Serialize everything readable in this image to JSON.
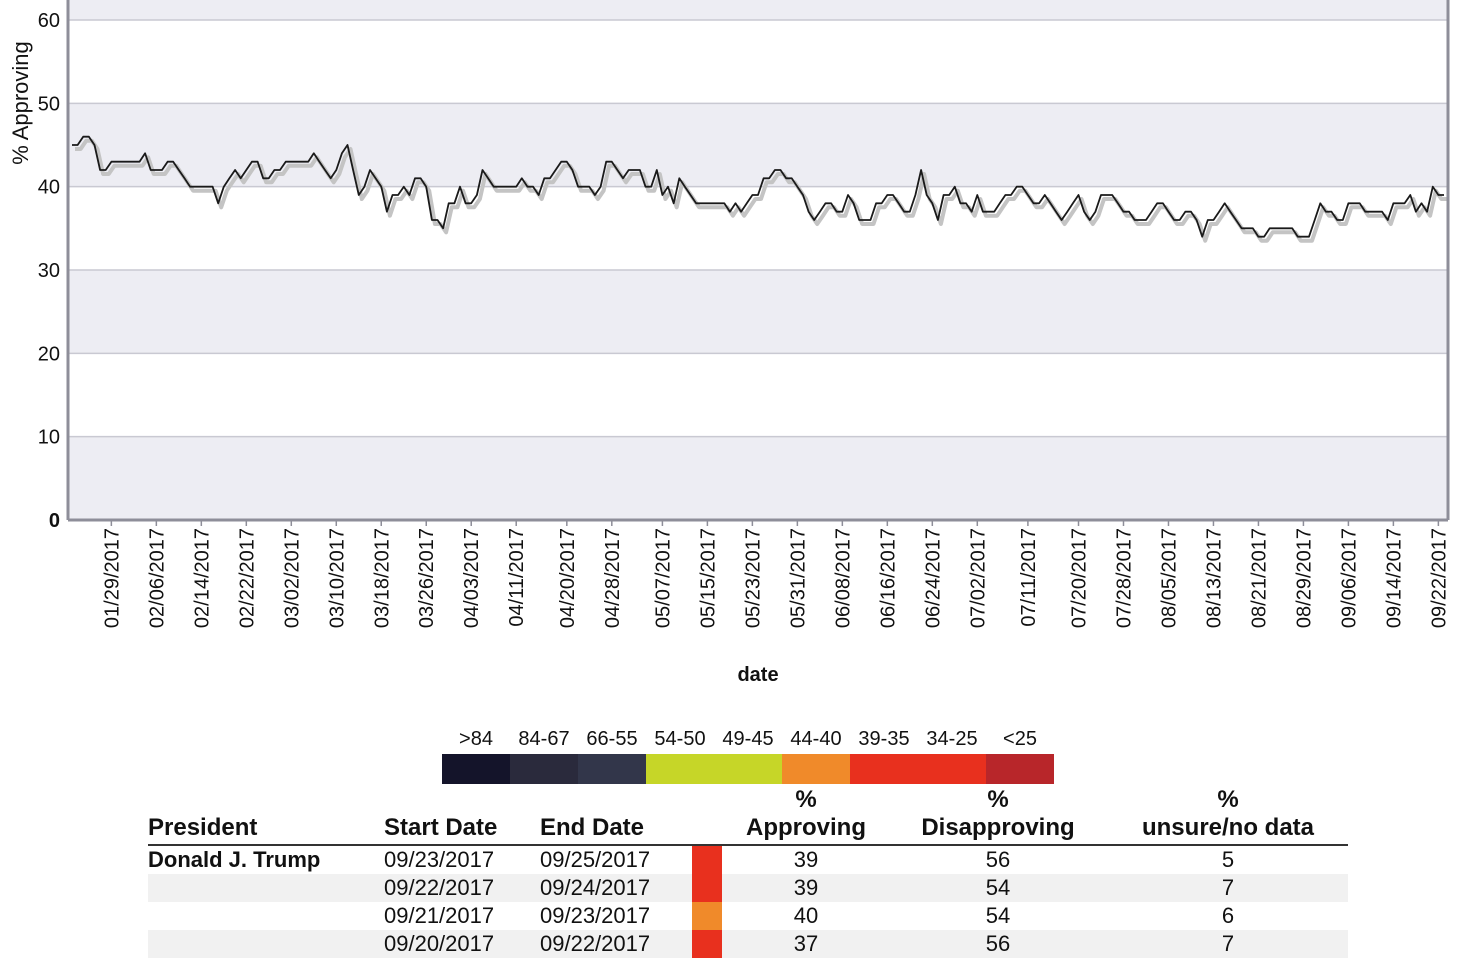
{
  "chart_data": {
    "type": "line",
    "ylabel": "% Approving",
    "xlabel": "date",
    "ylim": [
      0,
      60
    ],
    "yticks": [
      0,
      10,
      20,
      30,
      40,
      50,
      60
    ],
    "grid": true,
    "x_start": "01/22/2017",
    "x_end": "09/23/2017",
    "xtick_labels": [
      "01/29/2017",
      "02/06/2017",
      "02/14/2017",
      "02/22/2017",
      "03/02/2017",
      "03/10/2017",
      "03/18/2017",
      "03/26/2017",
      "04/03/2017",
      "04/11/2017",
      "04/20/2017",
      "04/28/2017",
      "05/07/2017",
      "05/15/2017",
      "05/23/2017",
      "05/31/2017",
      "06/08/2017",
      "06/16/2017",
      "06/24/2017",
      "07/02/2017",
      "07/11/2017",
      "07/20/2017",
      "07/28/2017",
      "08/05/2017",
      "08/13/2017",
      "08/21/2017",
      "08/29/2017",
      "09/06/2017",
      "09/14/2017",
      "09/22/2017"
    ],
    "series": [
      {
        "values": [
          45,
          45,
          46,
          46,
          45,
          42,
          42,
          43,
          43,
          43,
          43,
          43,
          43,
          44,
          42,
          42,
          42,
          43,
          43,
          42,
          41,
          40,
          40,
          40,
          40,
          40,
          38,
          40,
          41,
          42,
          41,
          42,
          43,
          43,
          41,
          41,
          42,
          42,
          43,
          43,
          43,
          43,
          43,
          44,
          43,
          42,
          41,
          42,
          44,
          45,
          42,
          39,
          40,
          42,
          41,
          40,
          37,
          39,
          39,
          40,
          39,
          41,
          41,
          40,
          36,
          36,
          35,
          38,
          38,
          40,
          38,
          38,
          39,
          42,
          41,
          40,
          40,
          40,
          40,
          40,
          41,
          40,
          40,
          39,
          41,
          41,
          42,
          43,
          43,
          42,
          40,
          40,
          40,
          39,
          40,
          43,
          43,
          42,
          41,
          42,
          42,
          42,
          40,
          40,
          42,
          39,
          40,
          38,
          41,
          40,
          39,
          38,
          38,
          38,
          38,
          38,
          38,
          37,
          38,
          37,
          38,
          39,
          39,
          41,
          41,
          42,
          42,
          41,
          41,
          40,
          39,
          37,
          36,
          37,
          38,
          38,
          37,
          37,
          39,
          38,
          36,
          36,
          36,
          38,
          38,
          39,
          39,
          38,
          37,
          37,
          39,
          42,
          39,
          38,
          36,
          39,
          39,
          40,
          38,
          38,
          37,
          39,
          37,
          37,
          37,
          38,
          39,
          39,
          40,
          40,
          39,
          38,
          38,
          39,
          38,
          37,
          36,
          37,
          38,
          39,
          37,
          36,
          37,
          39,
          39,
          39,
          38,
          37,
          37,
          36,
          36,
          36,
          37,
          38,
          38,
          37,
          36,
          36,
          37,
          37,
          36,
          34,
          36,
          36,
          37,
          38,
          37,
          36,
          35,
          35,
          35,
          34,
          34,
          35,
          35,
          35,
          35,
          35,
          34,
          34,
          34,
          36,
          38,
          37,
          37,
          36,
          36,
          38,
          38,
          38,
          37,
          37,
          37,
          37,
          36,
          38,
          38,
          38,
          39,
          37,
          38,
          37,
          40,
          39,
          39
        ]
      }
    ]
  },
  "legend": {
    "items": [
      {
        "label": ">84",
        "color": "#14142a"
      },
      {
        "label": "84-67",
        "color": "#2a2a3c"
      },
      {
        "label": "66-55",
        "color": "#32364a"
      },
      {
        "label": "54-50",
        "color": "#c6d628"
      },
      {
        "label": "49-45",
        "color": "#c6d628"
      },
      {
        "label": "44-40",
        "color": "#f08a2a"
      },
      {
        "label": "39-35",
        "color": "#e8301e"
      },
      {
        "label": "34-25",
        "color": "#e8301e"
      },
      {
        "label": "<25",
        "color": "#b8262a"
      }
    ]
  },
  "table": {
    "headers": {
      "president": "President",
      "start_date": "Start Date",
      "end_date": "End Date",
      "approving_line1": "%",
      "approving_line2": "Approving",
      "disapproving_line1": "%",
      "disapproving_line2": "Disapproving",
      "unsure_line1": "%",
      "unsure_line2": "unsure/no data"
    },
    "rows": [
      {
        "president": "Donald J. Trump",
        "start": "09/23/2017",
        "end": "09/25/2017",
        "approving": "39",
        "disapproving": "56",
        "unsure": "5",
        "rating_color": "#e8301e"
      },
      {
        "president": "",
        "start": "09/22/2017",
        "end": "09/24/2017",
        "approving": "39",
        "disapproving": "54",
        "unsure": "7",
        "rating_color": "#e8301e"
      },
      {
        "president": "",
        "start": "09/21/2017",
        "end": "09/23/2017",
        "approving": "40",
        "disapproving": "54",
        "unsure": "6",
        "rating_color": "#f08a2a"
      },
      {
        "president": "",
        "start": "09/20/2017",
        "end": "09/22/2017",
        "approving": "37",
        "disapproving": "56",
        "unsure": "7",
        "rating_color": "#e8301e"
      }
    ]
  }
}
